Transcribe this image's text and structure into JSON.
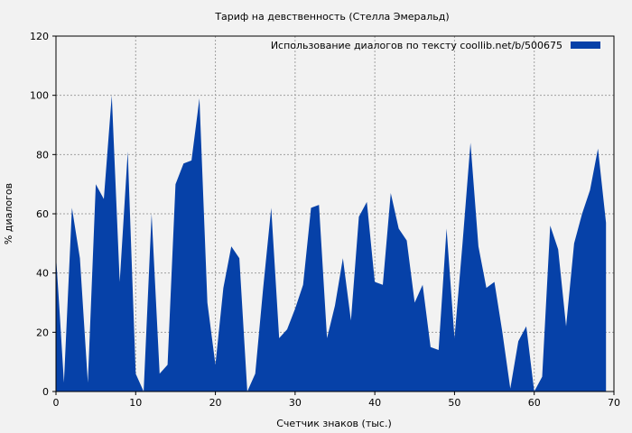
{
  "chart_data": {
    "type": "area",
    "title": "Тариф на девственность (Стелла Эмеральд)",
    "xlabel": "Счетчик знаков (тыс.)",
    "ylabel": "% диалогов",
    "xlim": [
      0,
      70
    ],
    "ylim": [
      0,
      120
    ],
    "xticks": [
      0,
      10,
      20,
      30,
      40,
      50,
      60,
      70
    ],
    "yticks": [
      0,
      20,
      40,
      60,
      80,
      100,
      120
    ],
    "grid": true,
    "legend_position": "top-right",
    "series": [
      {
        "name": "Использование диалогов по тексту  coollib.net/b/500675",
        "color": "#0641a8",
        "x": [
          0,
          0.5,
          1,
          2,
          3,
          4,
          5,
          6,
          7,
          8,
          9,
          10,
          11,
          12,
          13,
          14,
          15,
          16,
          17,
          18,
          19,
          20,
          21,
          22,
          23,
          24,
          25,
          26,
          27,
          28,
          29,
          30,
          31,
          32,
          33,
          34,
          35,
          36,
          37,
          38,
          39,
          40,
          41,
          42,
          43,
          44,
          45,
          46,
          47,
          48,
          49,
          50,
          51,
          52,
          53,
          54,
          55,
          56,
          57,
          58,
          59,
          60,
          61,
          62,
          63,
          64,
          65,
          66,
          67,
          68,
          69
        ],
        "y": [
          46,
          25,
          3,
          62,
          45,
          3,
          70,
          65,
          100,
          37,
          81,
          6,
          0,
          60,
          6,
          9,
          70,
          77,
          78,
          99,
          30,
          9,
          35,
          49,
          45,
          0,
          6,
          35,
          62,
          18,
          21,
          28,
          36,
          62,
          63,
          18,
          29,
          45,
          24,
          59,
          64,
          37,
          36,
          67,
          55,
          51,
          30,
          36,
          15,
          14,
          55,
          18,
          50,
          84,
          49,
          35,
          37,
          20,
          1,
          17,
          22,
          0,
          5,
          56,
          48,
          22,
          50,
          60,
          68,
          82,
          57
        ]
      }
    ]
  }
}
